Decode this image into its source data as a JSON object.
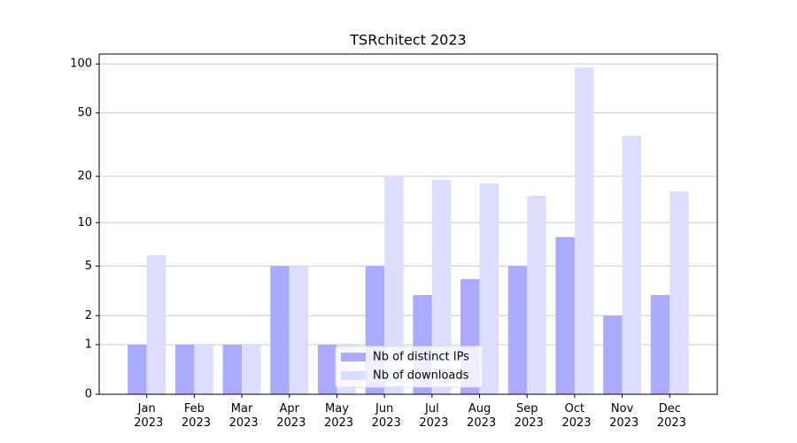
{
  "chart_data": {
    "type": "bar",
    "title": "TSRchitect 2023",
    "categories": [
      "Jan 2023",
      "Feb 2023",
      "Mar 2023",
      "Apr 2023",
      "May 2023",
      "Jun 2023",
      "Jul 2023",
      "Aug 2023",
      "Sep 2023",
      "Oct 2023",
      "Nov 2023",
      "Dec 2023"
    ],
    "series": [
      {
        "name": "Nb of distinct IPs",
        "color": "#aaaaff",
        "values": [
          1,
          1,
          1,
          5,
          1,
          5,
          3,
          4,
          5,
          8,
          2,
          3
        ]
      },
      {
        "name": "Nb of downloads",
        "color": "#ddddff",
        "values": [
          6,
          1,
          1,
          5,
          1,
          20,
          19,
          18,
          15,
          95,
          36,
          16
        ]
      }
    ],
    "yscale": "log1p",
    "ylim": [
      0,
      115
    ],
    "yticks": [
      0,
      1,
      2,
      5,
      10,
      20,
      50,
      100
    ],
    "grid": true,
    "legend": "lower center"
  }
}
